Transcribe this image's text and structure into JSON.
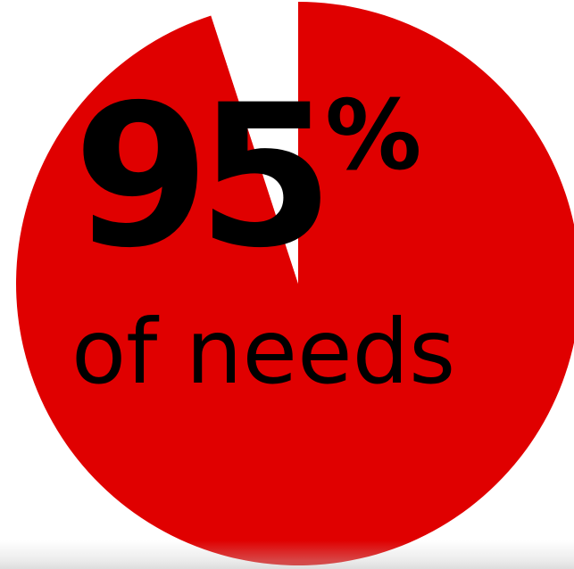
{
  "chart_data": {
    "type": "pie",
    "slices": [
      {
        "label": "needs",
        "value": 95,
        "color": "#e00000"
      },
      {
        "label": "",
        "value": 5,
        "color": "#ffffff"
      }
    ],
    "start_at": "top",
    "direction": "clockwise",
    "value_text": "95",
    "unit_text": "%",
    "caption": "of needs"
  }
}
